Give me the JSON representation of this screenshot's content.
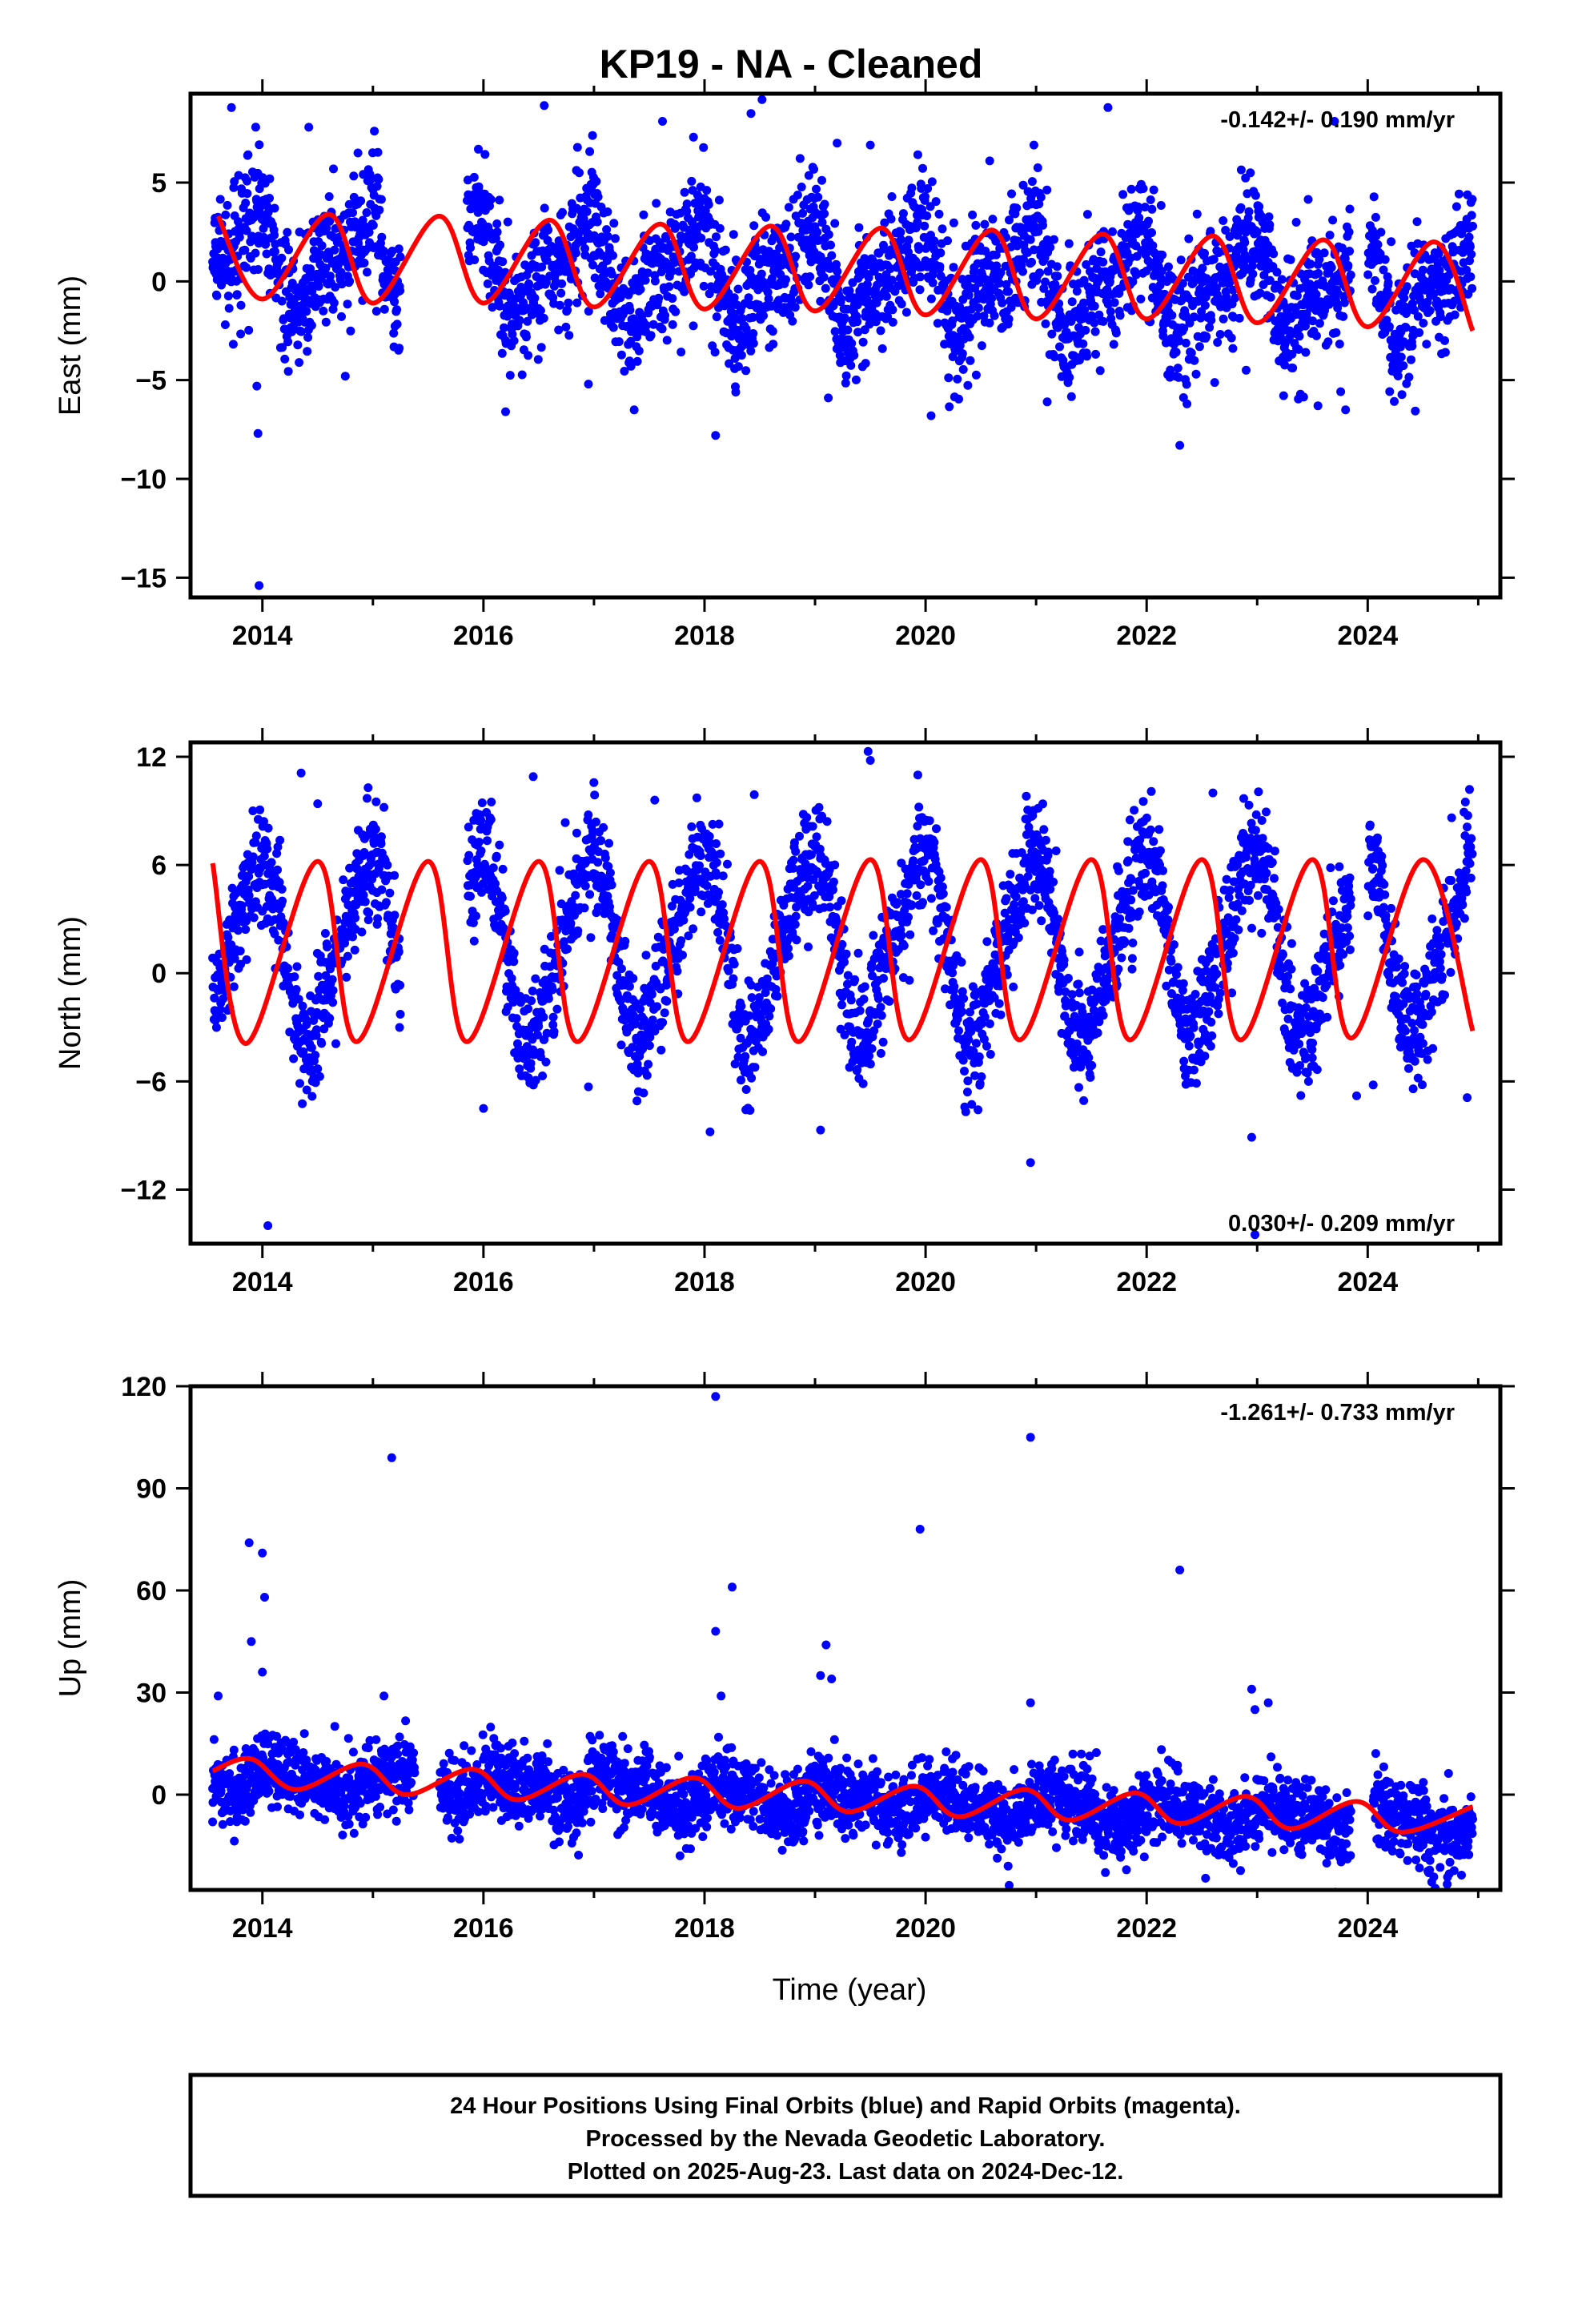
{
  "title": "KP19  - NA - Cleaned",
  "xlabel": "Time (year)",
  "footer": {
    "line1": "24 Hour Positions Using Final Orbits (blue) and Rapid Orbits (magenta).",
    "line2": "Processed by the Nevada Geodetic Laboratory.",
    "line3": "Plotted on 2025-Aug-23. Last data on 2024-Dec-12."
  },
  "colors": {
    "points": "#0000ff",
    "fit": "#ff0000",
    "frame": "#000000"
  },
  "chart_data": [
    {
      "type": "scatter",
      "name": "east",
      "ylabel": "East (mm)",
      "rate_text": "-0.142+/- 0.190 mm/yr",
      "rate_position": "top-right",
      "xlim": [
        2013.35,
        2025.2
      ],
      "ylim": [
        -16,
        9.5
      ],
      "xticks": [
        2014,
        2016,
        2018,
        2020,
        2022,
        2024
      ],
      "yticks": [
        5,
        0,
        -5,
        -10,
        -15
      ],
      "data_start": 2013.55,
      "data_end": 2024.95,
      "gaps": [
        [
          2015.25,
          2015.85
        ],
        [
          2023.85,
          2024.0
        ]
      ],
      "model": {
        "offset": 1.2,
        "rate": -0.142,
        "annual_amp": 2.0,
        "annual_phase": 2.35,
        "semi_amp": 1.0,
        "semi_phase": 1.6
      },
      "scatter_sigma": 1.6,
      "fit_series": [
        {
          "x": 2013.6,
          "y": 3.3
        },
        {
          "x": 2014.0,
          "y": -0.9
        },
        {
          "x": 2014.6,
          "y": 3.4
        },
        {
          "x": 2015.0,
          "y": -1.1
        },
        {
          "x": 2015.6,
          "y": 3.3
        },
        {
          "x": 2016.0,
          "y": -1.1
        },
        {
          "x": 2016.6,
          "y": 3.1
        },
        {
          "x": 2017.0,
          "y": -1.3
        },
        {
          "x": 2017.6,
          "y": 2.9
        },
        {
          "x": 2018.0,
          "y": -1.4
        },
        {
          "x": 2018.6,
          "y": 2.8
        },
        {
          "x": 2019.0,
          "y": -1.5
        },
        {
          "x": 2019.6,
          "y": 2.7
        },
        {
          "x": 2020.0,
          "y": -1.7
        },
        {
          "x": 2020.6,
          "y": 2.6
        },
        {
          "x": 2021.0,
          "y": -1.9
        },
        {
          "x": 2021.6,
          "y": 2.4
        },
        {
          "x": 2022.0,
          "y": -1.9
        },
        {
          "x": 2022.6,
          "y": 2.3
        },
        {
          "x": 2023.0,
          "y": -2.1
        },
        {
          "x": 2023.6,
          "y": 2.1
        },
        {
          "x": 2024.0,
          "y": -2.3
        },
        {
          "x": 2024.6,
          "y": 2.0
        },
        {
          "x": 2024.95,
          "y": -2.5
        }
      ],
      "outliers": [
        {
          "x": 2013.97,
          "y": -15.4
        },
        {
          "x": 2013.96,
          "y": -7.7
        },
        {
          "x": 2013.95,
          "y": -5.3
        },
        {
          "x": 2013.72,
          "y": 8.8
        },
        {
          "x": 2014.42,
          "y": 7.8
        },
        {
          "x": 2014.75,
          "y": -4.8
        },
        {
          "x": 2016.2,
          "y": -6.6
        },
        {
          "x": 2016.55,
          "y": 8.9
        },
        {
          "x": 2016.95,
          "y": -5.2
        },
        {
          "x": 2017.62,
          "y": 8.1
        },
        {
          "x": 2017.9,
          "y": 7.3
        },
        {
          "x": 2018.1,
          "y": -7.8
        },
        {
          "x": 2018.42,
          "y": 8.5
        },
        {
          "x": 2018.52,
          "y": 9.2
        },
        {
          "x": 2019.2,
          "y": 7.0
        },
        {
          "x": 2019.12,
          "y": -5.9
        },
        {
          "x": 2019.5,
          "y": 6.9
        },
        {
          "x": 2020.05,
          "y": -6.8
        },
        {
          "x": 2020.58,
          "y": 6.1
        },
        {
          "x": 2020.98,
          "y": 6.9
        },
        {
          "x": 2021.1,
          "y": -6.1
        },
        {
          "x": 2021.65,
          "y": 8.8
        },
        {
          "x": 2022.3,
          "y": -8.3
        },
        {
          "x": 2023.7,
          "y": 8.1
        },
        {
          "x": 2023.55,
          "y": -6.3
        },
        {
          "x": 2023.8,
          "y": -6.5
        },
        {
          "x": 2022.9,
          "y": -4.5
        }
      ]
    },
    {
      "type": "scatter",
      "name": "north",
      "ylabel": "North (mm)",
      "rate_text": "0.030+/- 0.209 mm/yr",
      "rate_position": "bottom-right",
      "xlim": [
        2013.35,
        2025.2
      ],
      "ylim": [
        -15,
        12.8
      ],
      "xticks": [
        2014,
        2016,
        2018,
        2020,
        2022,
        2024
      ],
      "yticks": [
        12,
        6,
        0,
        -6,
        -12
      ],
      "data_start": 2013.55,
      "data_end": 2024.95,
      "gaps": [
        [
          2015.25,
          2015.85
        ],
        [
          2023.85,
          2024.0
        ]
      ],
      "model": {
        "offset": 1.3,
        "rate": 0.03,
        "annual_amp": 4.9,
        "annual_phase": 1.9,
        "semi_amp": 0.9,
        "semi_phase": 0.6
      },
      "scatter_sigma": 1.6,
      "fit_series": [
        {
          "x": 2013.55,
          "y": 6.1
        },
        {
          "x": 2013.85,
          "y": -3.9
        },
        {
          "x": 2014.5,
          "y": 6.2
        },
        {
          "x": 2014.85,
          "y": -3.8
        },
        {
          "x": 2015.5,
          "y": 6.2
        },
        {
          "x": 2015.85,
          "y": -3.8
        },
        {
          "x": 2016.5,
          "y": 6.2
        },
        {
          "x": 2016.85,
          "y": -3.8
        },
        {
          "x": 2017.5,
          "y": 6.2
        },
        {
          "x": 2017.85,
          "y": -3.8
        },
        {
          "x": 2018.5,
          "y": 6.2
        },
        {
          "x": 2018.85,
          "y": -3.8
        },
        {
          "x": 2019.5,
          "y": 6.3
        },
        {
          "x": 2019.85,
          "y": -3.7
        },
        {
          "x": 2020.5,
          "y": 6.3
        },
        {
          "x": 2020.85,
          "y": -3.7
        },
        {
          "x": 2021.5,
          "y": 6.3
        },
        {
          "x": 2021.85,
          "y": -3.7
        },
        {
          "x": 2022.5,
          "y": 6.3
        },
        {
          "x": 2022.85,
          "y": -3.7
        },
        {
          "x": 2023.5,
          "y": 6.3
        },
        {
          "x": 2023.85,
          "y": -3.6
        },
        {
          "x": 2024.5,
          "y": 6.3
        },
        {
          "x": 2024.95,
          "y": -3.2
        }
      ],
      "outliers": [
        {
          "x": 2014.05,
          "y": -14.0
        },
        {
          "x": 2014.35,
          "y": 11.1
        },
        {
          "x": 2014.5,
          "y": 9.4
        },
        {
          "x": 2015.1,
          "y": 9.2
        },
        {
          "x": 2016.0,
          "y": -7.5
        },
        {
          "x": 2016.45,
          "y": 10.9
        },
        {
          "x": 2016.95,
          "y": -6.3
        },
        {
          "x": 2017.55,
          "y": 9.6
        },
        {
          "x": 2018.05,
          "y": -8.8
        },
        {
          "x": 2018.45,
          "y": 9.9
        },
        {
          "x": 2019.05,
          "y": -8.7
        },
        {
          "x": 2019.48,
          "y": 12.3
        },
        {
          "x": 2019.5,
          "y": 11.8
        },
        {
          "x": 2020.95,
          "y": -10.5
        },
        {
          "x": 2021.0,
          "y": 6.3
        },
        {
          "x": 2022.6,
          "y": 10.0
        },
        {
          "x": 2022.95,
          "y": -9.1
        },
        {
          "x": 2022.98,
          "y": -14.5
        },
        {
          "x": 2023.9,
          "y": -6.8
        },
        {
          "x": 2024.05,
          "y": -6.2
        },
        {
          "x": 2024.9,
          "y": -6.9
        }
      ]
    },
    {
      "type": "scatter",
      "name": "up",
      "ylabel": "Up (mm)",
      "rate_text": "-1.261+/- 0.733 mm/yr",
      "rate_position": "top-right",
      "xlim": [
        2013.35,
        2025.2
      ],
      "ylim": [
        -28,
        120
      ],
      "xticks": [
        2014,
        2016,
        2018,
        2020,
        2022,
        2024
      ],
      "yticks": [
        120,
        90,
        60,
        30,
        0
      ],
      "data_start": 2013.55,
      "data_end": 2024.95,
      "gaps": [
        [
          2015.38,
          2015.6
        ],
        [
          2023.85,
          2024.05
        ]
      ],
      "model": {
        "offset": 6.0,
        "rate": -1.261,
        "annual_amp": 3.0,
        "annual_phase": 0.3,
        "semi_amp": 1.4,
        "semi_phase": 1.2
      },
      "scatter_sigma": 5.5,
      "fit_series": [
        {
          "x": 2013.55,
          "y": 7.0
        },
        {
          "x": 2013.9,
          "y": 10.5
        },
        {
          "x": 2014.3,
          "y": 1.5
        },
        {
          "x": 2014.9,
          "y": 9.0
        },
        {
          "x": 2015.3,
          "y": 0.0
        },
        {
          "x": 2015.9,
          "y": 7.5
        },
        {
          "x": 2016.3,
          "y": -1.5
        },
        {
          "x": 2016.9,
          "y": 6.0
        },
        {
          "x": 2017.3,
          "y": -3.0
        },
        {
          "x": 2017.9,
          "y": 5.0
        },
        {
          "x": 2018.3,
          "y": -4.0
        },
        {
          "x": 2018.9,
          "y": 4.0
        },
        {
          "x": 2019.3,
          "y": -5.0
        },
        {
          "x": 2019.9,
          "y": 2.5
        },
        {
          "x": 2020.3,
          "y": -6.5
        },
        {
          "x": 2020.9,
          "y": 1.5
        },
        {
          "x": 2021.3,
          "y": -7.5
        },
        {
          "x": 2021.9,
          "y": 0.5
        },
        {
          "x": 2022.3,
          "y": -8.5
        },
        {
          "x": 2022.9,
          "y": -0.5
        },
        {
          "x": 2023.3,
          "y": -10.0
        },
        {
          "x": 2023.9,
          "y": -2.0
        },
        {
          "x": 2024.3,
          "y": -11.0
        },
        {
          "x": 2024.95,
          "y": -3.5
        }
      ],
      "outliers": [
        {
          "x": 2013.88,
          "y": 74
        },
        {
          "x": 2013.9,
          "y": 45
        },
        {
          "x": 2014.0,
          "y": 71
        },
        {
          "x": 2014.02,
          "y": 58
        },
        {
          "x": 2014.0,
          "y": 36
        },
        {
          "x": 2015.17,
          "y": 99
        },
        {
          "x": 2015.1,
          "y": 29
        },
        {
          "x": 2018.1,
          "y": 117
        },
        {
          "x": 2018.1,
          "y": 48
        },
        {
          "x": 2018.25,
          "y": 61
        },
        {
          "x": 2018.15,
          "y": 29
        },
        {
          "x": 2019.1,
          "y": 44
        },
        {
          "x": 2019.05,
          "y": 35
        },
        {
          "x": 2019.15,
          "y": 34
        },
        {
          "x": 2019.95,
          "y": 78
        },
        {
          "x": 2020.95,
          "y": 105
        },
        {
          "x": 2020.95,
          "y": 27
        },
        {
          "x": 2022.3,
          "y": 66
        },
        {
          "x": 2022.95,
          "y": 31
        },
        {
          "x": 2023.1,
          "y": 27
        },
        {
          "x": 2022.98,
          "y": 25
        },
        {
          "x": 2013.6,
          "y": 29
        },
        {
          "x": 2013.55,
          "y": -8
        }
      ]
    }
  ]
}
